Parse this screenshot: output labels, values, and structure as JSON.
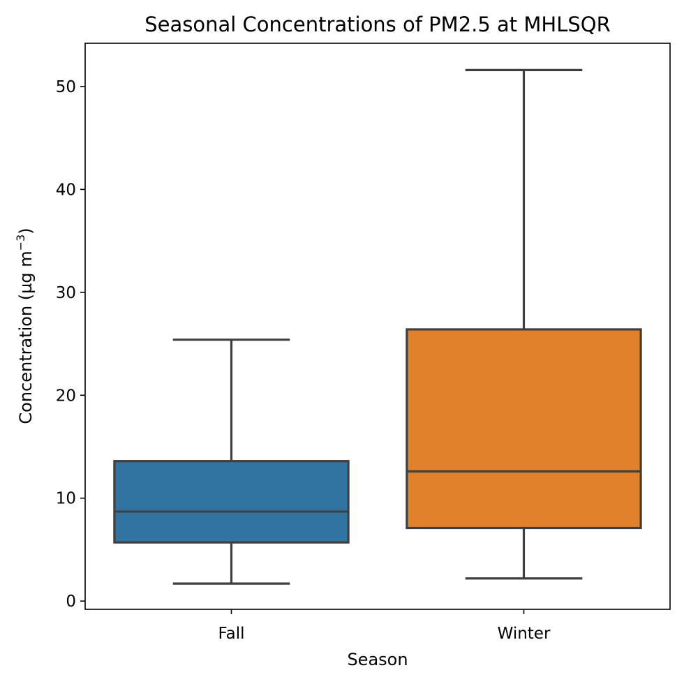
{
  "chart_data": {
    "type": "box",
    "title": "Seasonal Concentrations of PM2.5 at MHLSQR",
    "xlabel": "Season",
    "ylabel": "Concentration (µg m",
    "ylabel_superscript": "−3",
    "ylabel_suffix": ")",
    "ylim": [
      -0.8,
      54.2
    ],
    "yticks": [
      0,
      10,
      20,
      30,
      40,
      50
    ],
    "grid": false,
    "categories": [
      "Fall",
      "Winter"
    ],
    "boxes": [
      {
        "category": "Fall",
        "whisker_low": 1.7,
        "q1": 5.7,
        "median": 8.7,
        "q3": 13.6,
        "whisker_high": 25.4,
        "color": "#3274a1"
      },
      {
        "category": "Winter",
        "whisker_low": 2.2,
        "q1": 7.1,
        "median": 12.6,
        "q3": 26.4,
        "whisker_high": 51.6,
        "color": "#e1812c"
      }
    ],
    "line_color": "#3f3f3f"
  }
}
